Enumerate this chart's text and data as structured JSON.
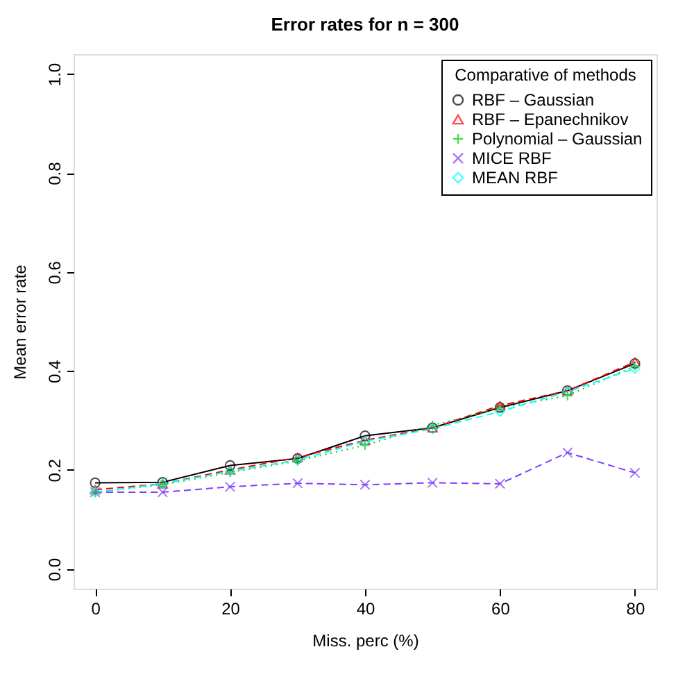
{
  "chart_data": {
    "type": "line",
    "title": "Error rates for n = 300",
    "xlabel": "Miss. perc (%)",
    "ylabel": "Mean error rate",
    "legend_title": "Comparative of methods",
    "legend": "top right",
    "grid": false,
    "x": [
      0,
      10,
      20,
      30,
      40,
      50,
      60,
      70,
      80
    ],
    "xlim": [
      -3.2,
      83.2
    ],
    "xticks": [
      0,
      20,
      40,
      60,
      80
    ],
    "ylim": [
      -0.04,
      1.04
    ],
    "yticks": [
      {
        "value": 0,
        "label": "0.0"
      },
      0.2,
      0.4,
      0.6,
      0.8,
      {
        "value": 1,
        "label": "1.0"
      }
    ],
    "series": [
      {
        "name": "RBF – Gaussian",
        "color": "#000000",
        "marker": "circle",
        "line_style": "solid",
        "values": [
          0.174,
          0.175,
          0.209,
          0.223,
          0.269,
          0.285,
          0.326,
          0.36,
          0.415
        ]
      },
      {
        "name": "RBF – Epanechnikov",
        "color": "#ff0000",
        "marker": "triangle",
        "line_style": "dashed",
        "values": [
          0.16,
          0.172,
          0.2,
          0.225,
          0.26,
          0.285,
          0.33,
          0.36,
          0.418
        ]
      },
      {
        "name": "Polynomial – Gaussian",
        "color": "#00cd00",
        "marker": "cross",
        "line_style": "dotted",
        "values": [
          0.155,
          0.17,
          0.195,
          0.218,
          0.25,
          0.29,
          0.325,
          0.35,
          0.41
        ]
      },
      {
        "name": "MICE RBF",
        "color": "#7f3fff",
        "marker": "x",
        "line_style": "dashed",
        "values": [
          0.155,
          0.155,
          0.166,
          0.173,
          0.17,
          0.174,
          0.172,
          0.235,
          0.194
        ]
      },
      {
        "name": "MEAN RBF",
        "color": "#00ffff",
        "marker": "diamond",
        "line_style": "dashed",
        "values": [
          0.155,
          0.172,
          0.197,
          0.22,
          0.258,
          0.283,
          0.318,
          0.358,
          0.405
        ]
      }
    ]
  }
}
